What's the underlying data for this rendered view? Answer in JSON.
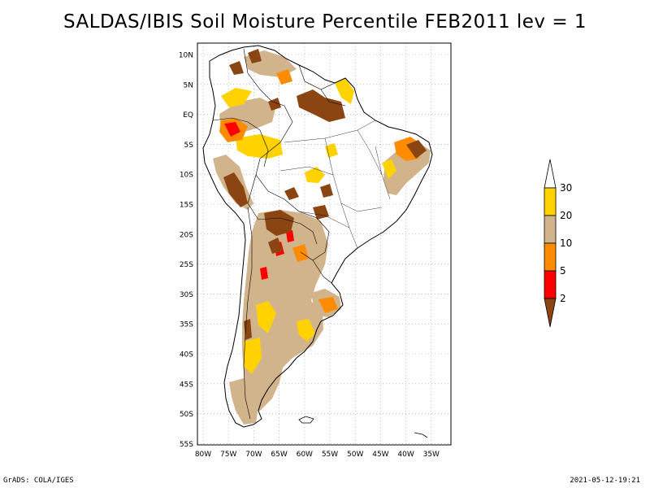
{
  "title": "SALDAS/IBIS Soil Moisture Percentile FEB2011 lev = 1",
  "footer": {
    "left": "GrADS: COLA/IGES",
    "right": "2021-05-12-19:21"
  },
  "map": {
    "lat_labels": [
      "10N",
      "5N",
      "EQ",
      "5S",
      "10S",
      "15S",
      "20S",
      "25S",
      "30S",
      "35S",
      "40S",
      "45S",
      "50S",
      "55S"
    ],
    "lon_labels": [
      "80W",
      "75W",
      "70W",
      "65W",
      "60W",
      "55W",
      "50W",
      "45W",
      "40W",
      "35W"
    ]
  },
  "legend": {
    "ticks": [
      "30",
      "20",
      "10",
      "5",
      "2"
    ],
    "classes": [
      {
        "range": ">30",
        "color": "#ffffff"
      },
      {
        "range": "20-30",
        "color": "#ffd200"
      },
      {
        "range": "10-20",
        "color": "#d2b48c"
      },
      {
        "range": "5-10",
        "color": "#ff8c00"
      },
      {
        "range": "2-5",
        "color": "#ff0000"
      },
      {
        "range": "<2",
        "color": "#8b4513"
      }
    ]
  },
  "colors": {
    "dark_brown": "#8b4513",
    "red": "#ff0000",
    "orange": "#ff8c00",
    "tan": "#d2b48c",
    "yellow": "#ffd200"
  }
}
